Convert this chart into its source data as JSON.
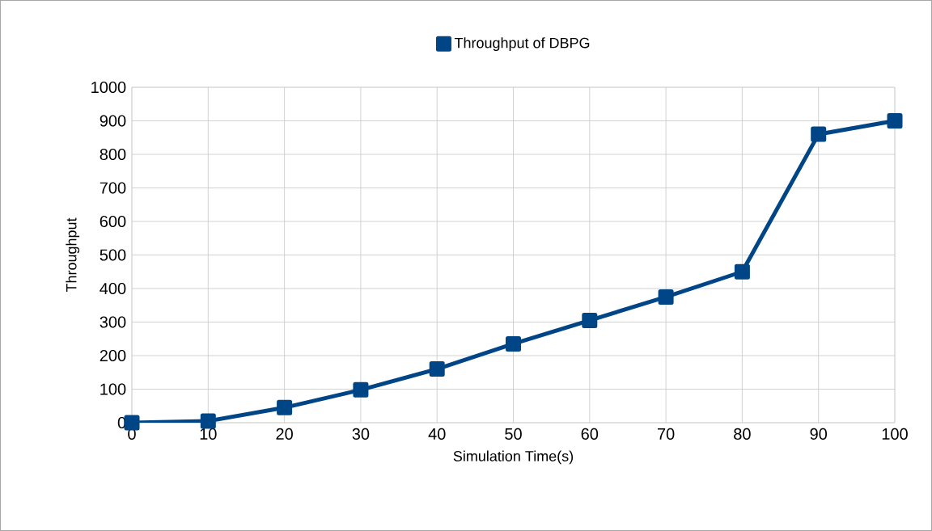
{
  "chart_data": {
    "type": "line",
    "xlabel": "Simulation Time(s)",
    "ylabel": "Throughput",
    "x": [
      0,
      10,
      20,
      30,
      40,
      50,
      60,
      70,
      80,
      90,
      100
    ],
    "series": [
      {
        "name": "Throughput of DBPG",
        "color": "#004586",
        "values": [
          0,
          5,
          45,
          98,
          160,
          235,
          305,
          375,
          450,
          860,
          900
        ]
      }
    ],
    "xlim": [
      0,
      100
    ],
    "ylim": [
      0,
      1000
    ],
    "xticks": [
      0,
      10,
      20,
      30,
      40,
      50,
      60,
      70,
      80,
      90,
      100
    ],
    "yticks": [
      0,
      100,
      200,
      300,
      400,
      500,
      600,
      700,
      800,
      900,
      1000
    ],
    "grid": true,
    "legend": "top",
    "marker": "square",
    "line_style": "solid"
  }
}
